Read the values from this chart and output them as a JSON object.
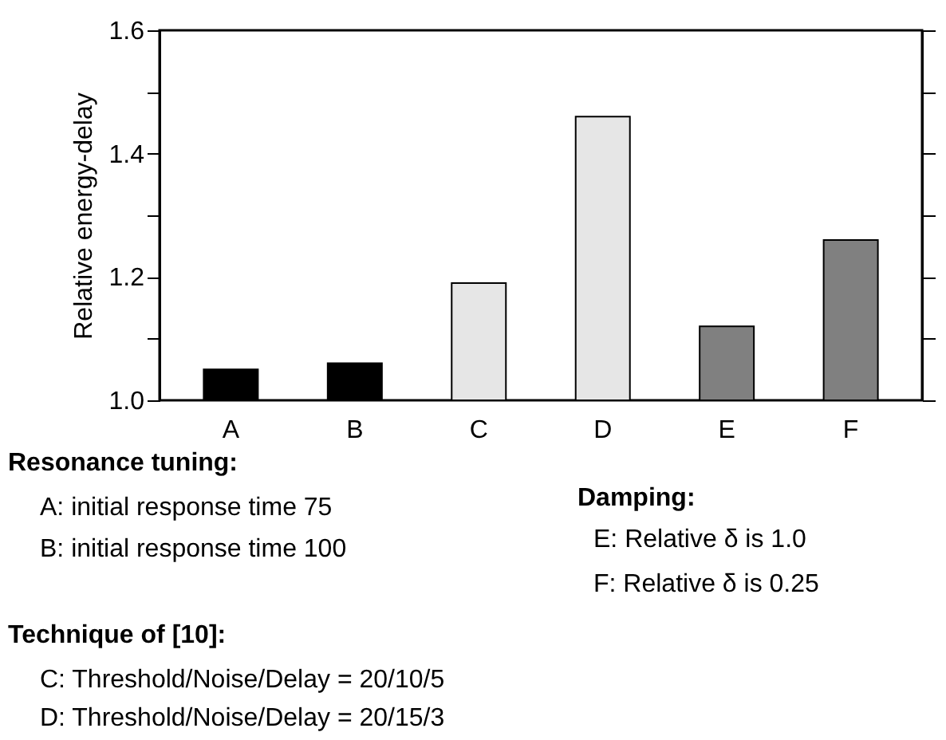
{
  "chart_data": {
    "type": "bar",
    "ylabel": "Relative energy-delay",
    "categories": [
      "A",
      "B",
      "C",
      "D",
      "E",
      "F"
    ],
    "values": [
      1.05,
      1.06,
      1.19,
      1.46,
      1.12,
      1.26
    ],
    "colors": [
      "#000000",
      "#000000",
      "#e6e6e6",
      "#e6e6e6",
      "#808080",
      "#808080"
    ],
    "ylim": [
      1.0,
      1.6
    ],
    "yticks": [
      {
        "value": 1.0,
        "label": "1.0"
      },
      {
        "value": 1.1,
        "label": null
      },
      1.2,
      {
        "value": 1.3,
        "label": null
      },
      1.4,
      {
        "value": 1.5,
        "label": null
      },
      1.6
    ],
    "grid": false,
    "annotations": [
      "Resonance tuning:",
      "A: initial response time 75",
      "B: initial response time 100",
      "Damping:",
      "E: Relative δ is 1.0",
      "F: Relative δ is 0.25",
      "Technique of [10]:",
      "C: Threshold/Noise/Delay = 20/10/5",
      "D: Threshold/Noise/Delay = 20/15/3"
    ]
  }
}
